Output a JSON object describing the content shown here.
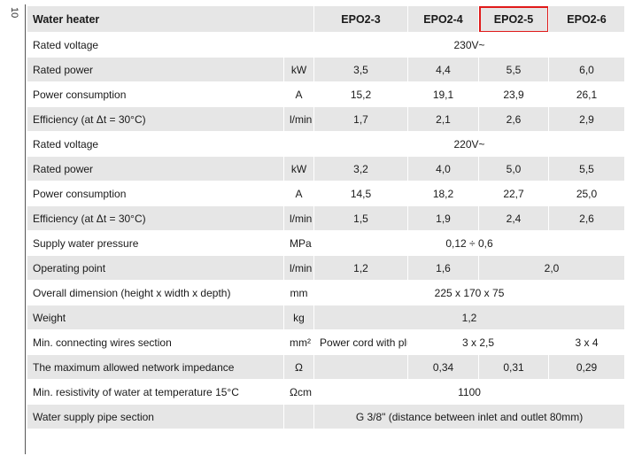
{
  "page_number": "10",
  "header": {
    "title": "Water heater",
    "models": [
      "EPO2-3",
      "EPO2-4",
      "EPO2-5",
      "EPO2-6"
    ],
    "highlighted_model": "EPO2-5",
    "highlight_color": "#e01a1a"
  },
  "rows": {
    "rated_voltage_1": {
      "label": "Rated voltage",
      "value": "230V~"
    },
    "rated_power_1": {
      "label": "Rated power",
      "unit": "kW",
      "values": [
        "3,5",
        "4,4",
        "5,5",
        "6,0"
      ]
    },
    "power_consumption_1": {
      "label": "Power consumption",
      "unit": "A",
      "values": [
        "15,2",
        "19,1",
        "23,9",
        "26,1"
      ]
    },
    "efficiency_1": {
      "label": "Efficiency (at Δt = 30°C)",
      "unit": "l/min",
      "values": [
        "1,7",
        "2,1",
        "2,6",
        "2,9"
      ]
    },
    "rated_voltage_2": {
      "label": "Rated voltage",
      "value": "220V~"
    },
    "rated_power_2": {
      "label": "Rated power",
      "unit": "kW",
      "values": [
        "3,2",
        "4,0",
        "5,0",
        "5,5"
      ]
    },
    "power_consumption_2": {
      "label": "Power consumption",
      "unit": "A",
      "values": [
        "14,5",
        "18,2",
        "22,7",
        "25,0"
      ]
    },
    "efficiency_2": {
      "label": "Efficiency (at Δt = 30°C)",
      "unit": "l/min",
      "values": [
        "1,5",
        "1,9",
        "2,4",
        "2,6"
      ]
    },
    "supply_pressure": {
      "label": "Supply water pressure",
      "unit": "MPa",
      "value": "0,12 ÷ 0,6"
    },
    "operating_point": {
      "label": "Operating point",
      "unit": "l/min",
      "values": [
        "1,2",
        "1,6",
        "2,0"
      ]
    },
    "overall_dimension": {
      "label": "Overall dimension (height x width x depth)",
      "unit": "mm",
      "value": "225 x 170 x 75"
    },
    "weight": {
      "label": "Weight",
      "unit": "kg",
      "value": "1,2"
    },
    "wires_section": {
      "label": "Min. connecting wires section",
      "unit": "mm²",
      "values": [
        "Power cord with plug",
        "3 x 2,5",
        "3 x 4"
      ]
    },
    "impedance": {
      "label": "The maximum allowed network impedance",
      "unit": "Ω",
      "values": [
        "",
        "0,34",
        "0,31",
        "0,29"
      ]
    },
    "resistivity": {
      "label": "Min. resistivity of water at temperature 15°C",
      "unit": "Ωcm",
      "value": "1100"
    },
    "supply_pipe": {
      "label": "Water supply pipe section",
      "unit": "",
      "value": "G 3/8\" (distance between inlet and outlet 80mm)"
    }
  }
}
